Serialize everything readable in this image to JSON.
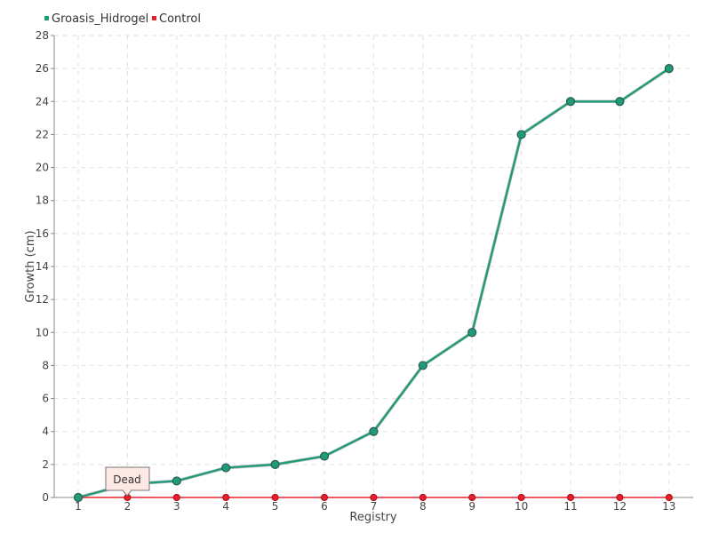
{
  "chart_data": {
    "type": "line",
    "title": "",
    "xlabel": "Registry",
    "ylabel": "Growth (cm)",
    "categories": [
      "1",
      "2",
      "3",
      "4",
      "5",
      "6",
      "7",
      "8",
      "9",
      "10",
      "11",
      "12",
      "13"
    ],
    "ylim": [
      0,
      28
    ],
    "ytick_step": 2,
    "grid": true,
    "legend_position": "top-left",
    "series": [
      {
        "name": "Groasis_Hidrogel",
        "color": "#1f9b79",
        "values": [
          0,
          0.8,
          1,
          1.8,
          2,
          2.5,
          4,
          8,
          10,
          22,
          24,
          24,
          26
        ]
      },
      {
        "name": "Control",
        "color": "#e8202a",
        "values": [
          0,
          0,
          0,
          0,
          0,
          0,
          0,
          0,
          0,
          0,
          0,
          0,
          0
        ]
      }
    ],
    "annotations": [
      {
        "text": "Dead",
        "series": "Control",
        "category": "2"
      }
    ]
  }
}
